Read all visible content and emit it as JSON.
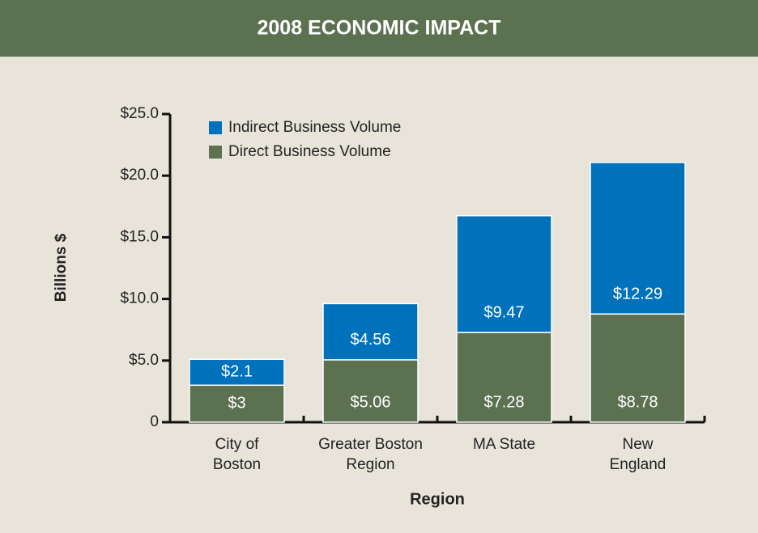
{
  "chart_data": {
    "type": "stacked_bar",
    "title": "2008 ECONOMIC IMPACT",
    "y_label": "Billions $",
    "x_label": "Region",
    "categories": [
      [
        "City of",
        "Boston"
      ],
      [
        "Greater Boston",
        "Region"
      ],
      [
        "MA State"
      ],
      [
        "New",
        "England"
      ]
    ],
    "series": [
      {
        "name": "Direct Business Volume",
        "color": "#5b7150",
        "values": [
          3,
          5.06,
          7.28,
          8.78
        ],
        "value_labels": [
          "$3",
          "$5.06",
          "$7.28",
          "$8.78"
        ]
      },
      {
        "name": "Indirect Business Volume",
        "color": "#0071bb",
        "values": [
          2.1,
          4.56,
          9.47,
          12.29
        ],
        "value_labels": [
          "$2.1",
          "$4.56",
          "$9.47",
          "$12.29"
        ]
      }
    ],
    "ylim": [
      0,
      25
    ],
    "yticks": [
      0,
      {
        "value": 5,
        "label": "$5.0"
      },
      {
        "value": 10,
        "label": "$10.0"
      },
      {
        "value": 15,
        "label": "$15.0"
      },
      {
        "value": 20,
        "label": "$20.0"
      },
      {
        "value": 25,
        "label": "$25.0"
      }
    ]
  }
}
